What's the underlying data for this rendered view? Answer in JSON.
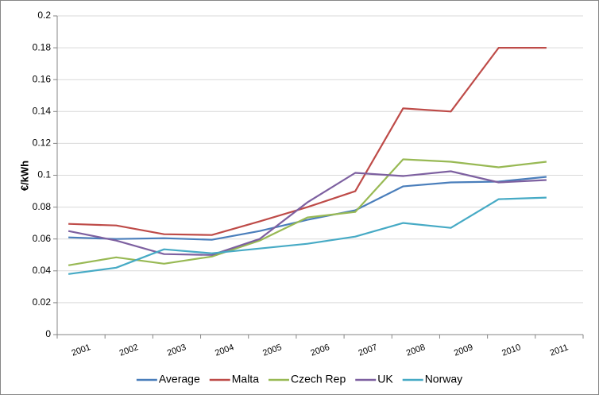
{
  "chart_data": {
    "type": "line",
    "y_label": "€/kWh",
    "categories": [
      "2001",
      "2002",
      "2003",
      "2004",
      "2005",
      "2006",
      "2007",
      "2008",
      "2009",
      "2010",
      "2011"
    ],
    "series": [
      {
        "name": "Average",
        "color": "#4a7ebb",
        "values": [
          0.061,
          0.06,
          0.0605,
          0.0595,
          0.065,
          0.072,
          0.078,
          0.093,
          0.0955,
          0.096,
          0.099
        ]
      },
      {
        "name": "Malta",
        "color": "#be4b48",
        "values": [
          0.0695,
          0.0685,
          0.063,
          0.0625,
          0.071,
          0.08,
          0.09,
          0.142,
          0.14,
          0.18,
          0.18
        ]
      },
      {
        "name": "Czech Rep",
        "color": "#98b954",
        "values": [
          0.0435,
          0.0485,
          0.0445,
          0.049,
          0.059,
          0.0735,
          0.077,
          0.11,
          0.1085,
          0.105,
          0.1085
        ]
      },
      {
        "name": "UK",
        "color": "#7d60a0",
        "values": [
          0.065,
          0.059,
          0.0505,
          0.05,
          0.06,
          0.083,
          0.1015,
          0.0995,
          0.1025,
          0.0955,
          0.097
        ]
      },
      {
        "name": "Norway",
        "color": "#46aac5",
        "values": [
          0.038,
          0.042,
          0.0535,
          0.051,
          0.054,
          0.057,
          0.0615,
          0.07,
          0.067,
          0.085,
          0.086
        ]
      }
    ],
    "ylim": [
      0,
      0.2
    ],
    "yticks": [
      0,
      0.02,
      0.04,
      0.06,
      0.08,
      0.1,
      0.12,
      0.14,
      0.16,
      0.18,
      0.2
    ],
    "grid": true,
    "legend": "bottom"
  }
}
